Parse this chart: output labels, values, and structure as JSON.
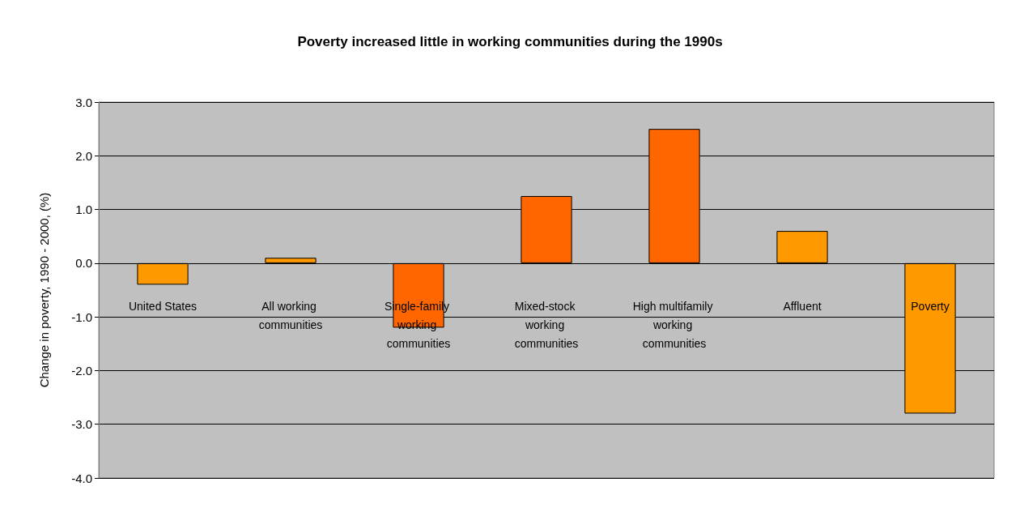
{
  "chart_data": {
    "type": "bar",
    "title": "Poverty increased little in working communities during the 1990s",
    "ylabel": "Change in poverty, 1990 - 2000, (%)",
    "categories": [
      "United States",
      "All working communities",
      "Single-family working communities",
      "Mixed-stock working communities",
      "High multifamily working communities",
      "Affluent",
      "Poverty"
    ],
    "values": [
      -0.4,
      0.1,
      -1.2,
      1.25,
      2.5,
      0.6,
      -2.8
    ],
    "colors": [
      "#ff9900",
      "#ff9900",
      "#ff6600",
      "#ff6600",
      "#ff6600",
      "#ff9900",
      "#ff9900"
    ],
    "ylim": [
      -4,
      3
    ],
    "yticks": [
      {
        "value": -4,
        "label": "-4.0"
      },
      {
        "value": -3,
        "label": "-3.0"
      },
      {
        "value": -2,
        "label": "-2.0"
      },
      {
        "value": -1,
        "label": "-1.0"
      },
      {
        "value": 0,
        "label": "0.0"
      },
      {
        "value": 1,
        "label": "1.0"
      },
      {
        "value": 2,
        "label": "2.0"
      },
      {
        "value": 3,
        "label": "3.0"
      }
    ],
    "grid": "y"
  }
}
